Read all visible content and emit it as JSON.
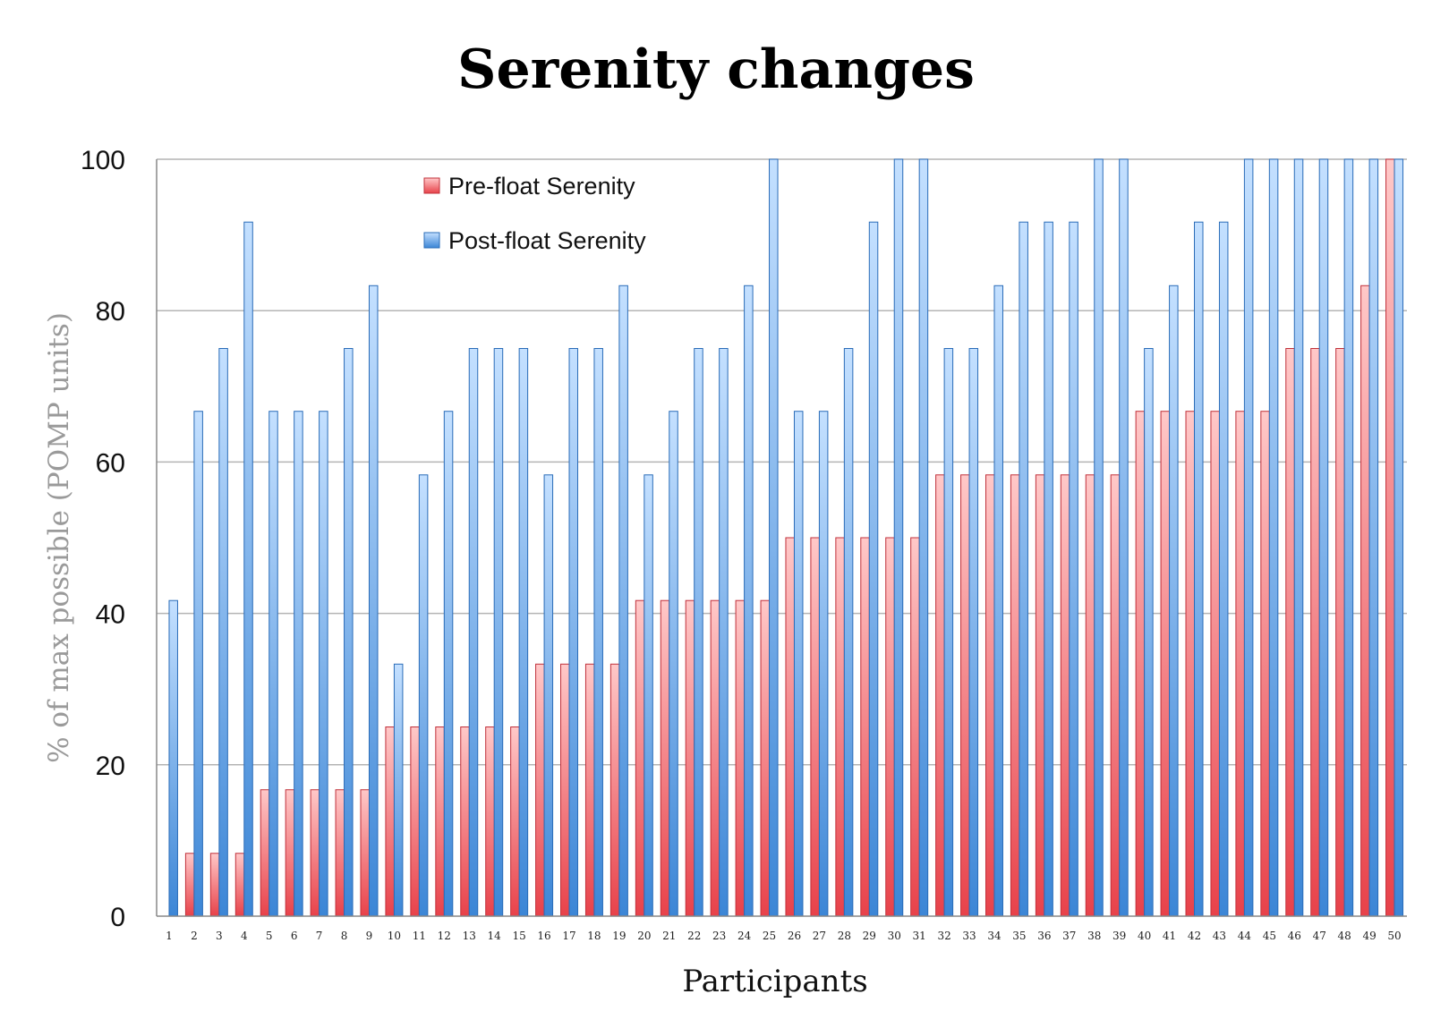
{
  "colors": {
    "pre": "#e8424a",
    "pre_light": "#ffc8c8",
    "post": "#3c86d6",
    "post_light": "#c4e0ff",
    "grid": "#b4b4b4"
  },
  "chart_data": {
    "type": "bar",
    "title": "Serenity changes",
    "xlabel": "Participants",
    "ylabel": "% of max possible (POMP units)",
    "ylim": [
      0,
      100
    ],
    "yticks": [
      "0",
      "20",
      "40",
      "60",
      "80",
      "100"
    ],
    "grid": true,
    "legend_position": "top-left",
    "categories": [
      "1",
      "2",
      "3",
      "4",
      "5",
      "6",
      "7",
      "8",
      "9",
      "10",
      "11",
      "12",
      "13",
      "14",
      "15",
      "16",
      "17",
      "18",
      "19",
      "20",
      "21",
      "22",
      "23",
      "24",
      "25",
      "26",
      "27",
      "28",
      "29",
      "30",
      "31",
      "32",
      "33",
      "34",
      "35",
      "36",
      "37",
      "38",
      "39",
      "40",
      "41",
      "42",
      "43",
      "44",
      "45",
      "46",
      "47",
      "48",
      "49",
      "50"
    ],
    "series": [
      {
        "name": "Pre-float Serenity",
        "values": [
          0,
          8.3,
          8.3,
          8.3,
          16.7,
          16.7,
          16.7,
          16.7,
          16.7,
          25,
          25,
          25,
          25,
          25,
          25,
          33.3,
          33.3,
          33.3,
          33.3,
          41.7,
          41.7,
          41.7,
          41.7,
          41.7,
          41.7,
          50,
          50,
          50,
          50,
          50,
          50,
          58.3,
          58.3,
          58.3,
          58.3,
          58.3,
          58.3,
          58.3,
          58.3,
          66.7,
          66.7,
          66.7,
          66.7,
          66.7,
          66.7,
          75,
          75,
          75,
          83.3,
          100
        ]
      },
      {
        "name": "Post-float Serenity",
        "values": [
          41.7,
          66.7,
          75,
          91.7,
          66.7,
          66.7,
          66.7,
          75,
          83.3,
          33.3,
          58.3,
          66.7,
          75,
          75,
          75,
          58.3,
          75,
          75,
          83.3,
          58.3,
          66.7,
          75,
          75,
          83.3,
          100,
          66.7,
          66.7,
          75,
          91.7,
          100,
          100,
          75,
          75,
          83.3,
          91.7,
          91.7,
          91.7,
          100,
          100,
          75,
          83.3,
          91.7,
          91.7,
          100,
          100,
          100,
          100,
          100,
          100,
          100
        ]
      }
    ]
  }
}
